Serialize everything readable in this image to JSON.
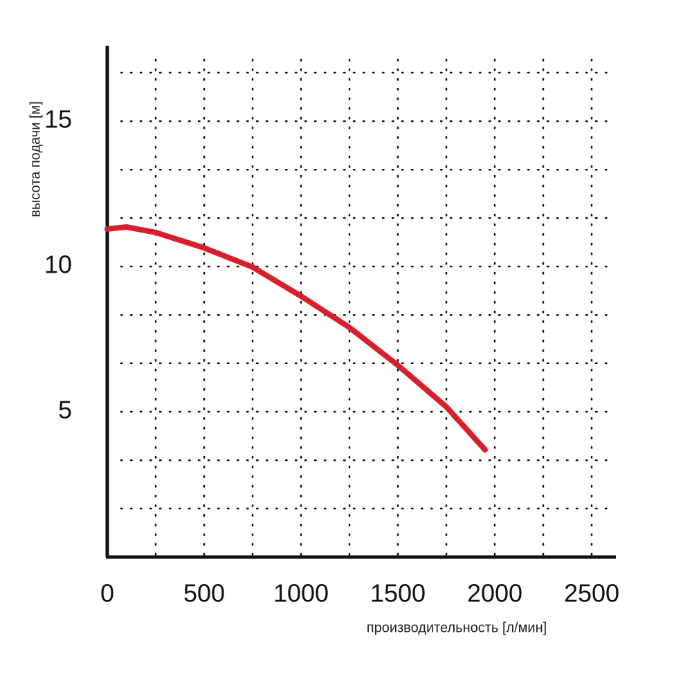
{
  "chart_data": {
    "type": "line",
    "x_label": "производительность [л/мин]",
    "y_label": "высота подачи [м]",
    "x": [
      0,
      100,
      250,
      500,
      750,
      1000,
      1250,
      1500,
      1750,
      1950
    ],
    "series": [
      {
        "color": "#d7202b",
        "values": [
          11.29,
          11.36,
          11.17,
          10.64,
          9.98,
          8.98,
          7.9,
          6.6,
          5.17,
          3.69
        ]
      }
    ],
    "xlim": [
      0,
      2625
    ],
    "ylim": [
      0,
      17.6
    ],
    "xticks": [
      0,
      500,
      1000,
      1500,
      2000,
      2500
    ],
    "yticks": [
      5,
      10,
      15
    ],
    "xgrid": [
      250,
      500,
      750,
      1000,
      1250,
      1500,
      1750,
      2000,
      2250,
      2500
    ],
    "ygrid": [
      1.67,
      3.33,
      5,
      6.67,
      8.33,
      10,
      11.67,
      13.33,
      15,
      16.67
    ],
    "grid": true
  }
}
